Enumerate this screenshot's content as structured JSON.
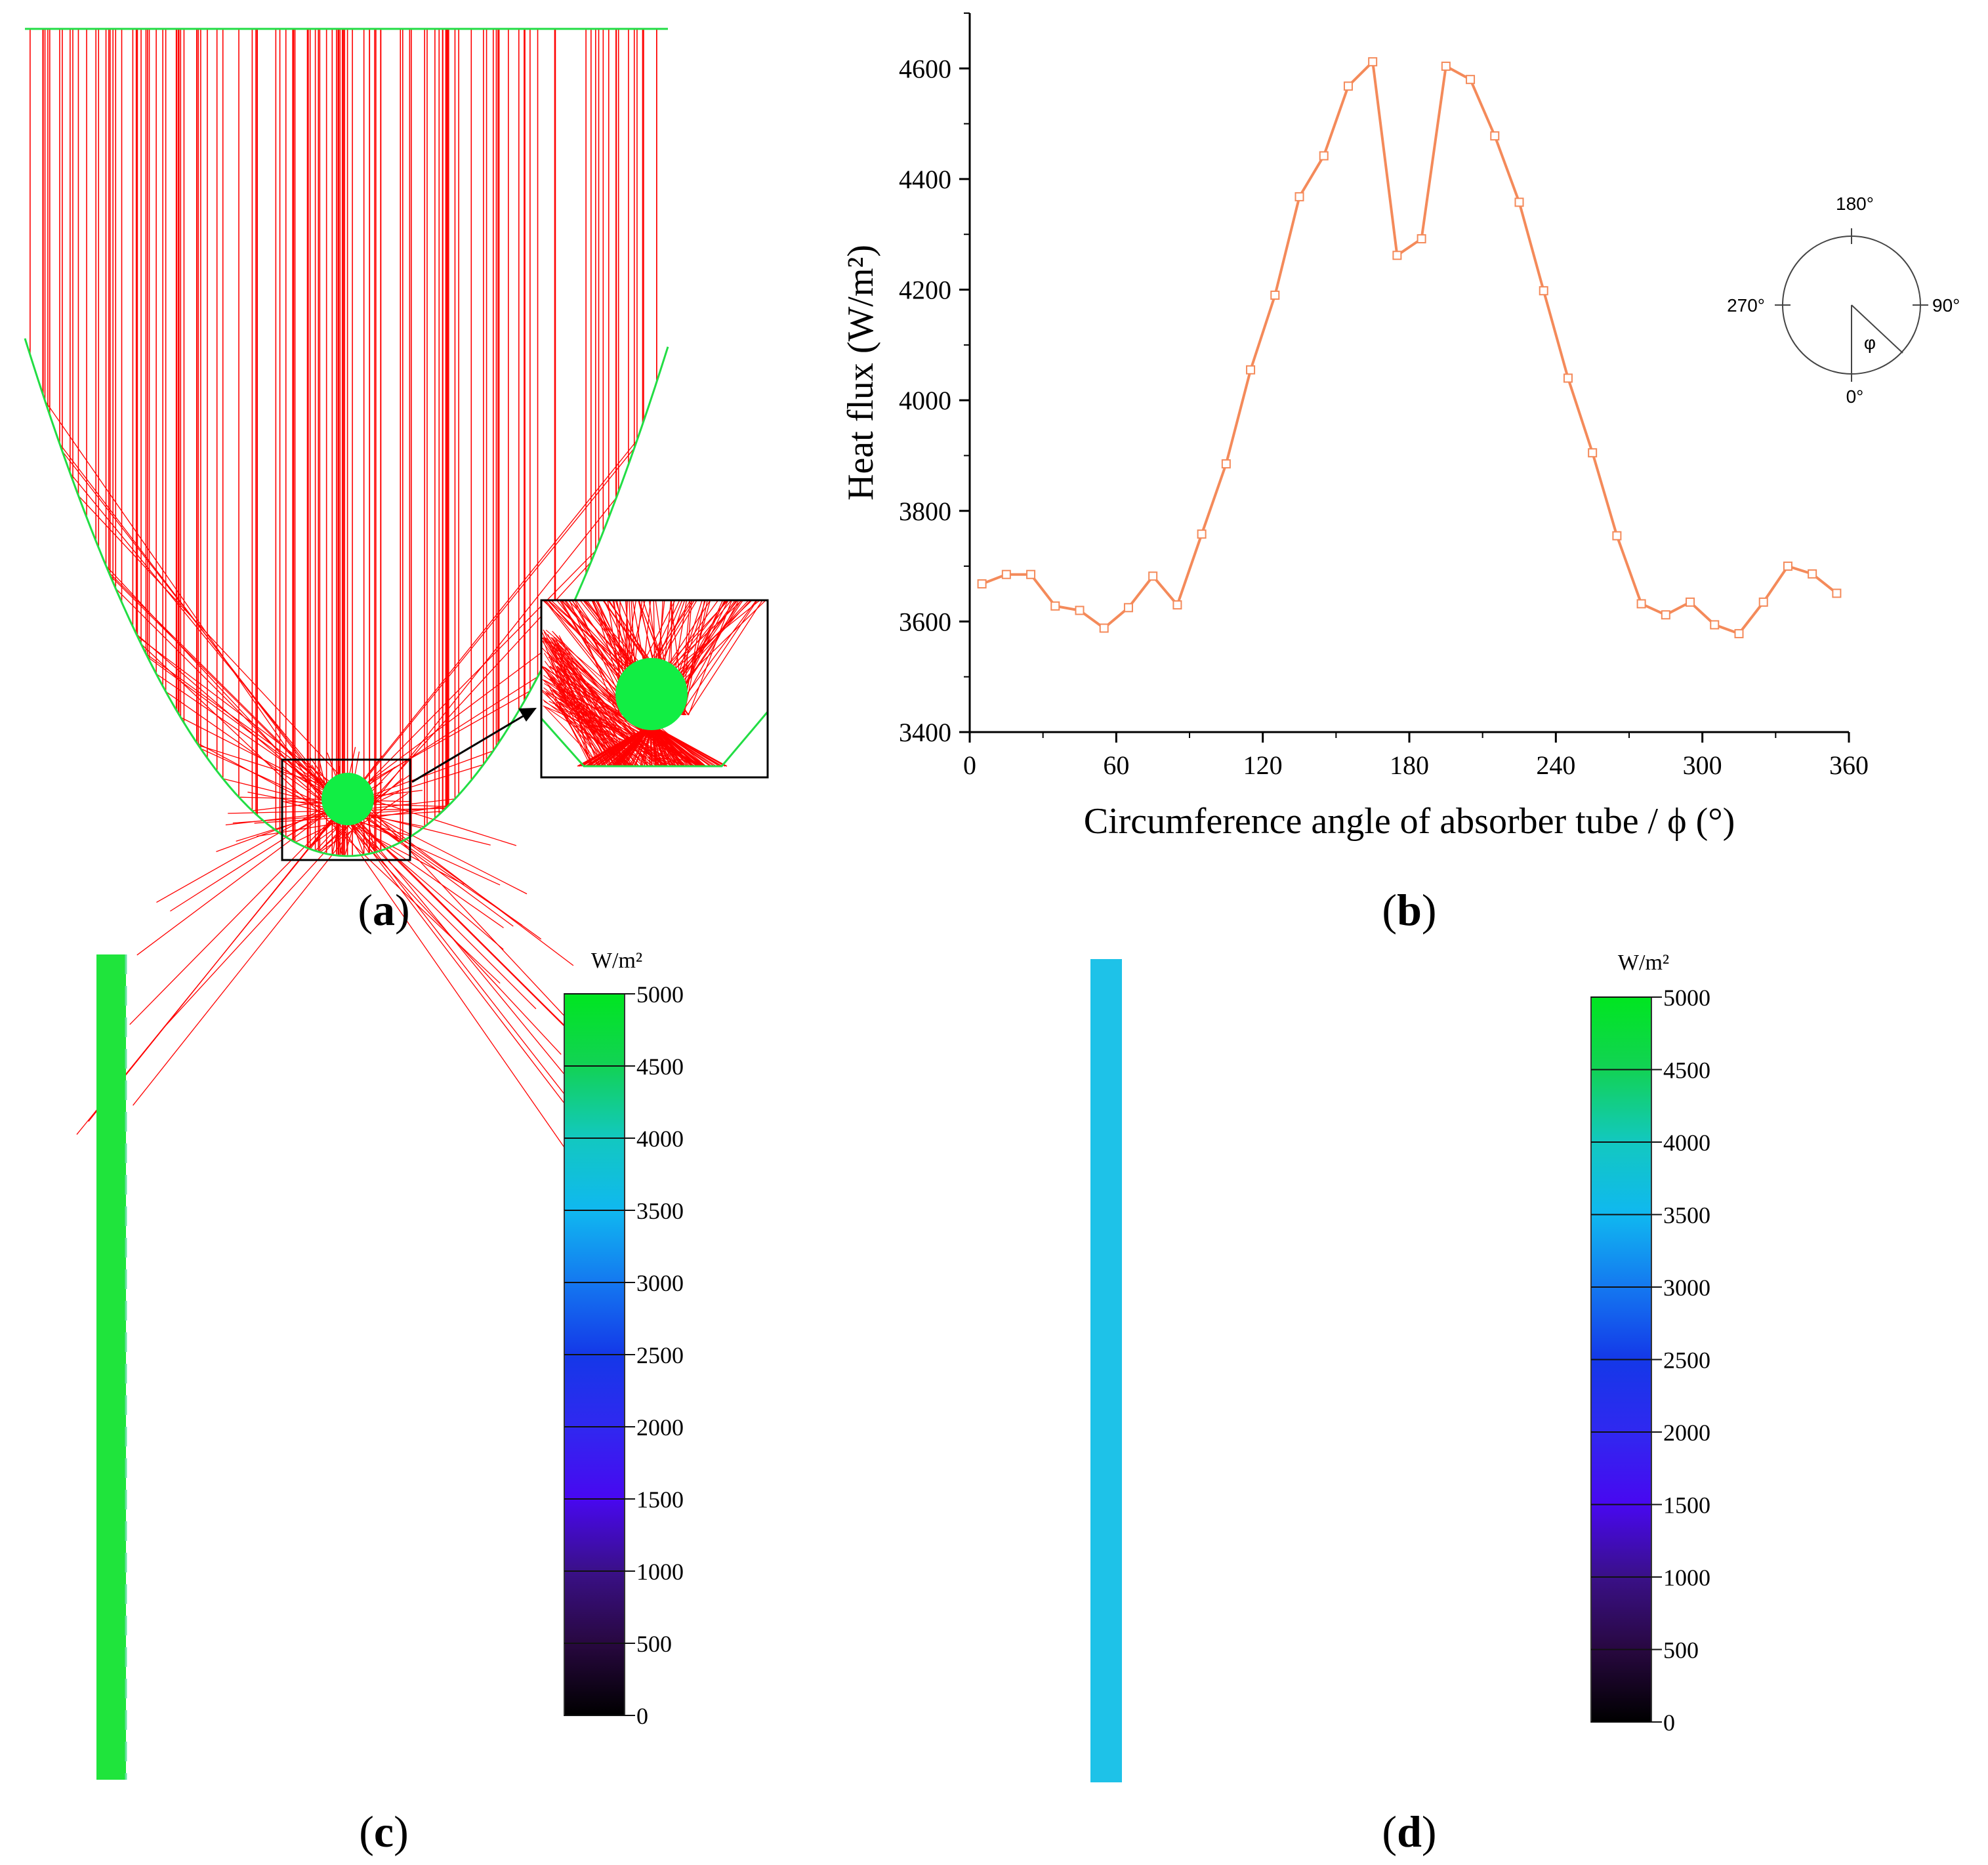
{
  "panels": {
    "a": {
      "label_open": "(",
      "label_letter": "a",
      "label_close": ")"
    },
    "b": {
      "label_open": "(",
      "label_letter": "b",
      "label_close": ")"
    },
    "c": {
      "label_open": "(",
      "label_letter": "c",
      "label_close": ")"
    },
    "d": {
      "label_open": "(",
      "label_letter": "d",
      "label_close": ")"
    }
  },
  "inset_diagram": {
    "labels": [
      "180°",
      "90°",
      "270°",
      "0°"
    ],
    "phi": "φ"
  },
  "colorbars": {
    "unit": "W/m²",
    "ticks": [
      "5000",
      "4500",
      "4000",
      "3500",
      "3000",
      "2500",
      "2000",
      "1500",
      "1000",
      "500",
      "0"
    ],
    "tube_c_color": "#1fe43c",
    "tube_d_color": "#1ec2e8"
  },
  "colors": {
    "ray": "#ff0000",
    "reflector": "#22dd44",
    "absorber": "#11ee44",
    "series": "#f48a5a"
  },
  "chart_data": {
    "type": "line",
    "title": "",
    "xlabel": "Circumference angle of absorber tube / ϕ (°)",
    "ylabel": "Heat flux (W/m²)",
    "xlim": [
      0,
      360
    ],
    "ylim": [
      3400,
      4700
    ],
    "xticks": [
      "0",
      "60",
      "120",
      "180",
      "240",
      "300",
      "360"
    ],
    "yticks": [
      "3400",
      "3600",
      "3800",
      "4000",
      "4200",
      "4400",
      "4600"
    ],
    "series": [
      {
        "name": "Heat flux",
        "x": [
          5,
          15,
          25,
          35,
          45,
          55,
          65,
          75,
          85,
          95,
          105,
          115,
          125,
          135,
          145,
          155,
          165,
          175,
          185,
          195,
          205,
          215,
          225,
          235,
          245,
          255,
          265,
          275,
          285,
          295,
          305,
          315,
          325,
          335,
          345,
          355
        ],
        "y": [
          3668,
          3685,
          3685,
          3628,
          3620,
          3588,
          3625,
          3682,
          3630,
          3758,
          3885,
          4055,
          4190,
          4368,
          4442,
          4568,
          4612,
          4262,
          4292,
          4604,
          4580,
          4478,
          4358,
          4198,
          4040,
          3905,
          3755,
          3632,
          3612,
          3635,
          3594,
          3578,
          3635,
          3700,
          3686,
          3651
        ]
      }
    ]
  }
}
